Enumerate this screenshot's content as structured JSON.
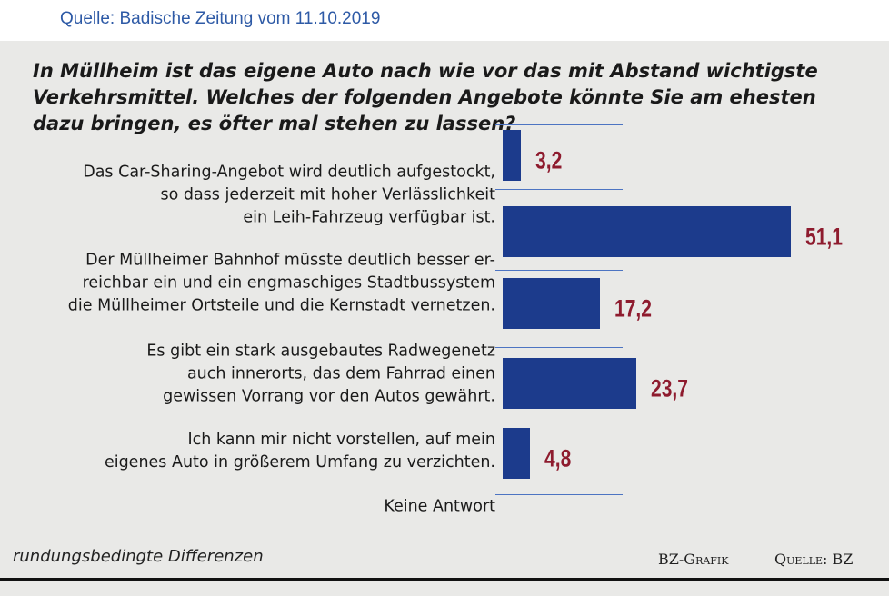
{
  "source_header": "Quelle: Badische Zeitung vom 11.10.2019",
  "chart_data": {
    "type": "bar",
    "orientation": "horizontal",
    "title": "In Müllheim ist das eigene Auto nach wie vor das mit Abstand wichtigste\nVerkehrsmittel. Welches der folgenden Angebote könnte Sie am ehesten\ndazu bringen, es öfter mal stehen zu lassen?",
    "categories": [
      null,
      "Das Car-Sharing-Angebot wird deutlich aufgestockt,\nso dass jederzeit mit hoher Verlässlichkeit\nein Leih-Fahrzeug verfügbar ist.",
      "Der Müllheimer Bahnhof müsste deutlich besser er-\nreichbar  ein und ein engmaschiges Stadtbussystem\ndie Müllheimer Ortsteile und die Kernstadt vernetzen.",
      "Es gibt ein stark ausgebautes Radwegenetz\nauch innerorts, das dem Fahrrad einen\ngewissen Vorrang vor den Autos gewährt.",
      "Ich kann mir nicht vorstellen, auf mein\neigenes Auto in größerem Umfang zu verzichten.",
      "Keine Antwort"
    ],
    "values": [
      3.2,
      51.1,
      17.2,
      23.7,
      4.8,
      null
    ],
    "value_labels": [
      "3,2",
      "51,1",
      "17,2",
      "23,7",
      "4,8",
      null
    ],
    "color": "#1c3b8c",
    "label_color": "#8e1b2e",
    "footnote": "rundungsbedingte Differenzen",
    "credit": "BZ-Grafik",
    "source": "Quelle: BZ"
  }
}
